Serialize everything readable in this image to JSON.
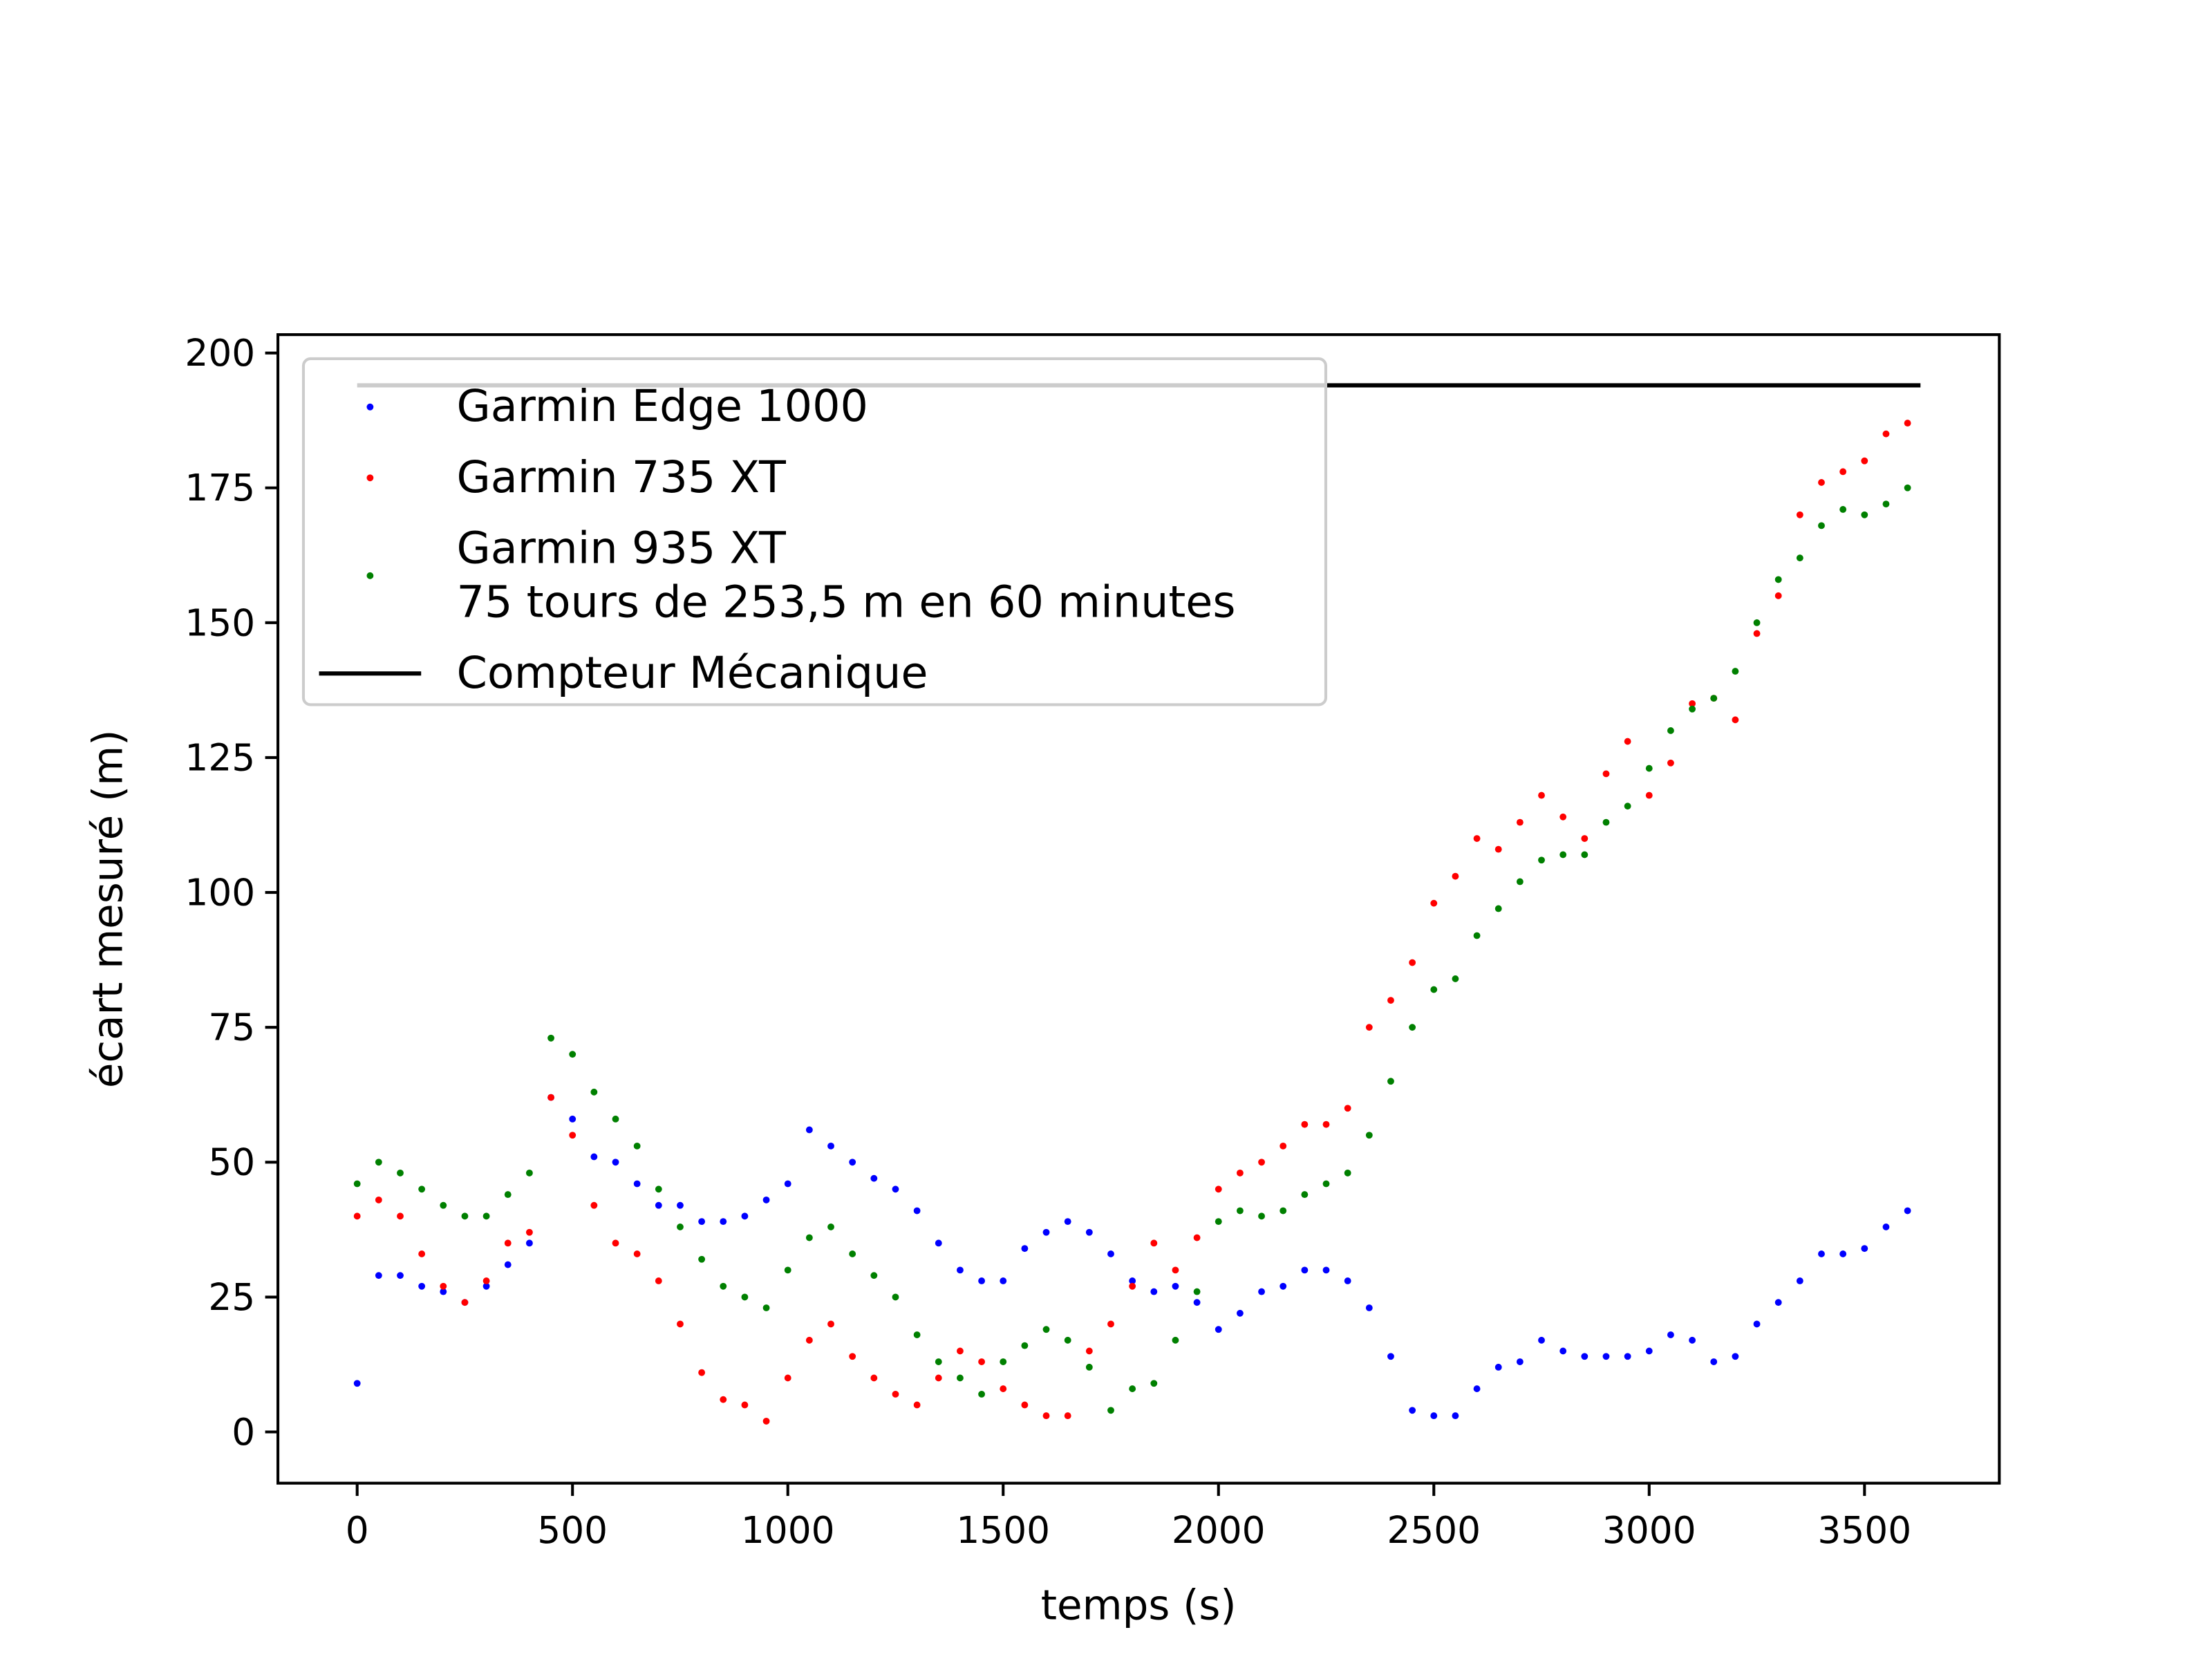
{
  "chart_data": {
    "type": "scatter",
    "xlabel": "temps (s)",
    "ylabel": "écart mesuré (m)",
    "xlim": [
      -184,
      3813
    ],
    "ylim": [
      -9.5,
      203.4
    ],
    "xticks": [
      0,
      500,
      1000,
      1500,
      2000,
      2500,
      3000,
      3500
    ],
    "yticks": [
      0,
      25,
      50,
      75,
      100,
      125,
      150,
      175,
      200
    ],
    "legend": "upper left",
    "x": [
      0,
      50,
      100,
      150,
      200,
      250,
      300,
      350,
      400,
      450,
      500,
      550,
      600,
      650,
      700,
      750,
      800,
      850,
      900,
      950,
      1000,
      1050,
      1100,
      1150,
      1200,
      1250,
      1300,
      1350,
      1400,
      1450,
      1500,
      1550,
      1600,
      1650,
      1700,
      1750,
      1800,
      1850,
      1900,
      1950,
      2000,
      2050,
      2100,
      2150,
      2200,
      2250,
      2300,
      2350,
      2400,
      2450,
      2500,
      2550,
      2600,
      2650,
      2700,
      2750,
      2800,
      2850,
      2900,
      2950,
      3000,
      3050,
      3100,
      3150,
      3200,
      3250,
      3300,
      3350,
      3400,
      3450,
      3500,
      3550,
      3600
    ],
    "series": [
      {
        "name": "Garmin Edge 1000",
        "color": "#0000ff",
        "style": "points",
        "values": [
          9,
          29,
          29,
          27,
          26,
          24,
          27,
          31,
          35,
          62,
          58,
          51,
          50,
          46,
          42,
          42,
          39,
          39,
          40,
          43,
          46,
          56,
          53,
          50,
          47,
          45,
          41,
          35,
          30,
          28,
          28,
          34,
          37,
          39,
          37,
          33,
          28,
          26,
          27,
          24,
          19,
          22,
          26,
          27,
          30,
          30,
          28,
          23,
          14,
          4,
          3,
          3,
          8,
          12,
          13,
          17,
          15,
          14,
          14,
          14,
          15,
          18,
          17,
          13,
          14,
          20,
          24,
          28,
          33,
          33,
          34,
          38,
          41
        ]
      },
      {
        "name": "Garmin 735 XT",
        "color": "#ff0000",
        "style": "points",
        "values": [
          40,
          43,
          40,
          33,
          27,
          24,
          28,
          35,
          37,
          62,
          55,
          42,
          35,
          33,
          28,
          20,
          11,
          6,
          5,
          2,
          10,
          17,
          20,
          14,
          10,
          7,
          5,
          10,
          15,
          13,
          8,
          5,
          3,
          3,
          15,
          20,
          27,
          35,
          30,
          36,
          45,
          48,
          50,
          53,
          57,
          57,
          60,
          75,
          80,
          87,
          98,
          103,
          110,
          108,
          113,
          118,
          114,
          110,
          122,
          128,
          118,
          124,
          135,
          136,
          132,
          148,
          155,
          170,
          176,
          178,
          180,
          185,
          187
        ]
      },
      {
        "name": "Garmin 935 XT\n75 tours de 253,5 m en 60 minutes",
        "color": "#008000",
        "style": "points",
        "values": [
          46,
          50,
          48,
          45,
          42,
          40,
          40,
          44,
          48,
          73,
          70,
          63,
          58,
          53,
          45,
          38,
          32,
          27,
          25,
          23,
          30,
          36,
          38,
          33,
          29,
          25,
          18,
          13,
          10,
          7,
          13,
          16,
          19,
          17,
          12,
          4,
          8,
          9,
          17,
          26,
          39,
          41,
          40,
          41,
          44,
          46,
          48,
          55,
          65,
          75,
          82,
          84,
          92,
          97,
          102,
          106,
          107,
          107,
          113,
          116,
          123,
          130,
          134,
          136,
          141,
          150,
          158,
          162,
          168,
          171,
          170,
          172,
          175
        ]
      },
      {
        "name": "Compteur Mécanique",
        "color": "#000000",
        "style": "line",
        "x": [
          0,
          3630
        ],
        "values": [
          194,
          194
        ]
      }
    ]
  }
}
